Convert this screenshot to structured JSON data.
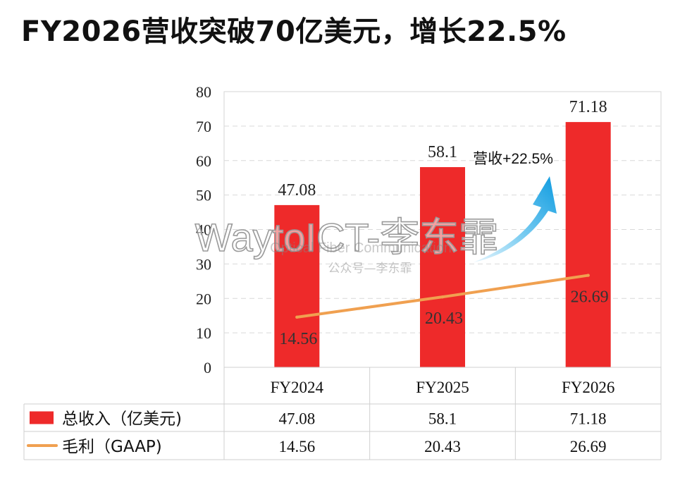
{
  "page": {
    "title": "FY2026营收突破70亿美元，增长22.5%",
    "watermark_main": "WaytoICT-李东霏",
    "watermark_sub1": "Optical Fiber Communication",
    "watermark_sub2": "公众号—李东霏"
  },
  "chart_data": {
    "type": "bar",
    "categories": [
      "FY2024",
      "FY2025",
      "FY2026"
    ],
    "series": [
      {
        "name": "总收入（亿美元)",
        "kind": "bar",
        "color": "#EE2A2A",
        "values": [
          47.08,
          58.1,
          71.18
        ],
        "labels": [
          "47.08",
          "58.1",
          "71.18"
        ]
      },
      {
        "name": "毛利（GAAP)",
        "kind": "line",
        "color": "#F0A050",
        "values": [
          14.56,
          20.43,
          26.69
        ],
        "labels": [
          "14.56",
          "20.43",
          "26.69"
        ]
      }
    ],
    "ylim": [
      0,
      80
    ],
    "yticks": [
      "0",
      "10",
      "20",
      "30",
      "40",
      "50",
      "60",
      "70",
      "80"
    ],
    "grid": true,
    "legend": "data-table",
    "annotation": {
      "text": "营收+22.5%",
      "arrow_color": "#1AA8E8"
    }
  }
}
